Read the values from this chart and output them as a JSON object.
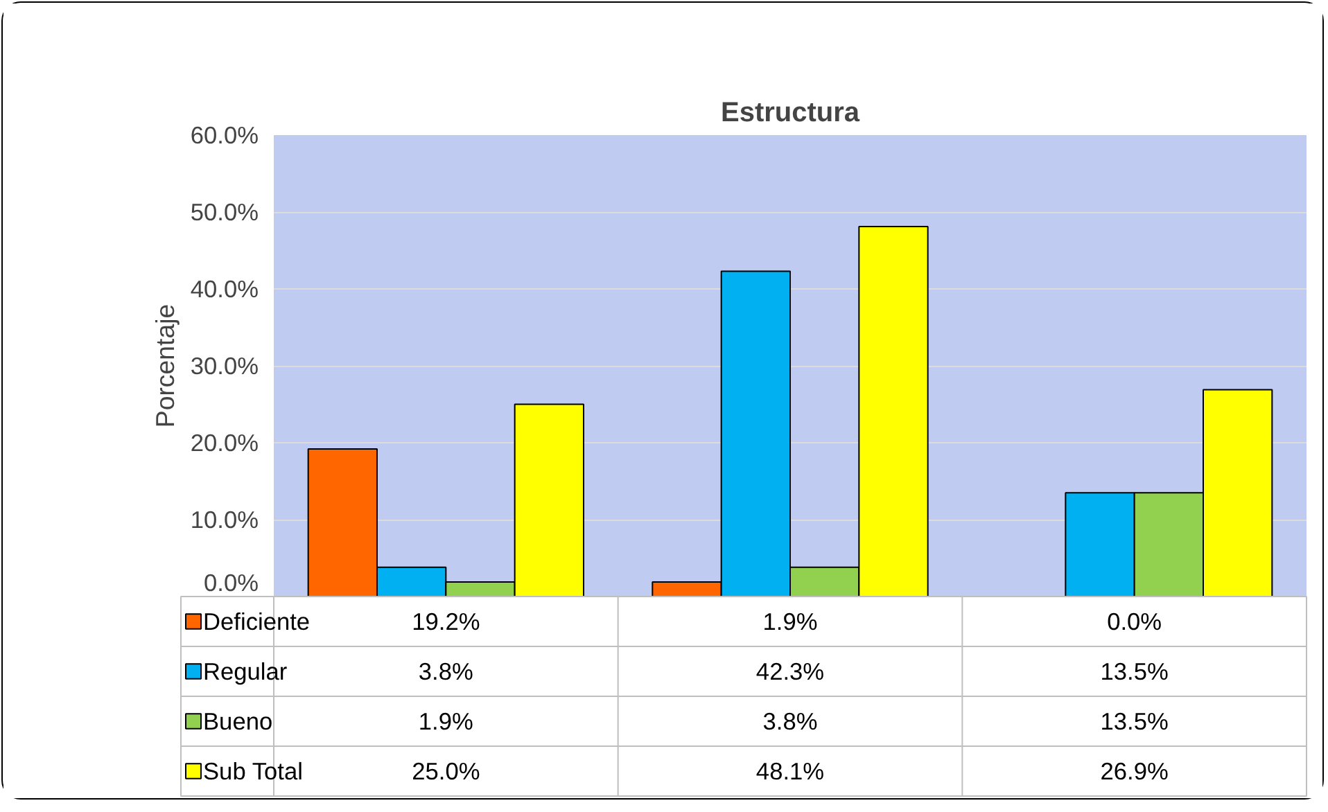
{
  "chart_data": {
    "type": "bar",
    "title": "Estructura",
    "ylabel": "Porcentaje",
    "categories": [
      null,
      null,
      null
    ],
    "series": [
      {
        "name": "Deficiente",
        "color": "#ff6600",
        "values": [
          19.2,
          1.9,
          0.0
        ],
        "value_labels": [
          "19.2%",
          "1.9%",
          "0.0%"
        ]
      },
      {
        "name": "Regular",
        "color": "#00b0f0",
        "values": [
          3.8,
          42.3,
          13.5
        ],
        "value_labels": [
          "3.8%",
          "42.3%",
          "13.5%"
        ]
      },
      {
        "name": "Bueno",
        "color": "#92d050",
        "values": [
          1.9,
          3.8,
          13.5
        ],
        "value_labels": [
          "1.9%",
          "3.8%",
          "13.5%"
        ]
      },
      {
        "name": "Sub Total",
        "color": "#ffff00",
        "values": [
          25.0,
          48.1,
          26.9
        ],
        "value_labels": [
          "25.0%",
          "48.1%",
          "26.9%"
        ]
      }
    ],
    "ylim": [
      0,
      60
    ],
    "yticks": [
      {
        "value": 0,
        "label": "0.0%"
      },
      {
        "value": 10,
        "label": "10.0%"
      },
      {
        "value": 20,
        "label": "20.0%"
      },
      {
        "value": 30,
        "label": "30.0%"
      },
      {
        "value": 40,
        "label": "40.0%"
      },
      {
        "value": 50,
        "label": "50.0%"
      },
      {
        "value": 60,
        "label": "60.0%"
      }
    ],
    "grid": "y",
    "legend": "bottom"
  }
}
